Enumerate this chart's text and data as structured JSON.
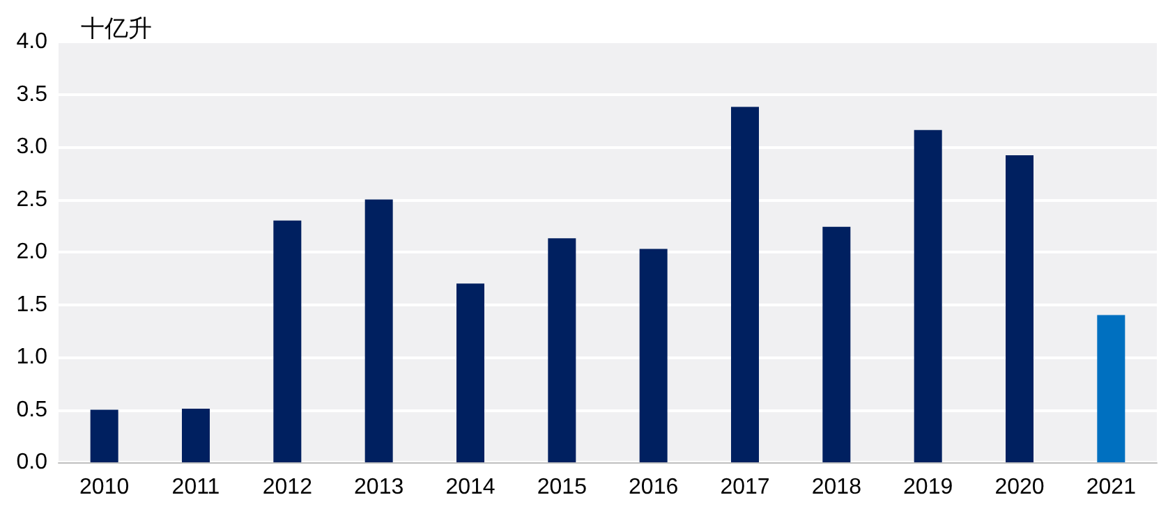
{
  "chart_data": {
    "type": "bar",
    "ylabel": "十亿升",
    "categories": [
      "2010",
      "2011",
      "2012",
      "2013",
      "2014",
      "2015",
      "2016",
      "2017",
      "2018",
      "2019",
      "2020",
      "2021"
    ],
    "values": [
      0.5,
      0.51,
      2.3,
      2.5,
      1.7,
      2.13,
      2.03,
      3.38,
      2.24,
      3.16,
      2.92,
      1.4
    ],
    "colors": [
      "#002060",
      "#002060",
      "#002060",
      "#002060",
      "#002060",
      "#002060",
      "#002060",
      "#002060",
      "#002060",
      "#002060",
      "#002060",
      "#0070c0"
    ],
    "ylim": [
      0,
      4
    ],
    "yticks": [
      {
        "value": 0,
        "label": "0.0"
      },
      0.5,
      {
        "value": 1,
        "label": "1.0"
      },
      1.5,
      {
        "value": 2,
        "label": "2.0"
      },
      2.5,
      {
        "value": 3,
        "label": "3.0"
      },
      3.5,
      {
        "value": 4,
        "label": "4.0"
      }
    ],
    "grid": "y"
  }
}
